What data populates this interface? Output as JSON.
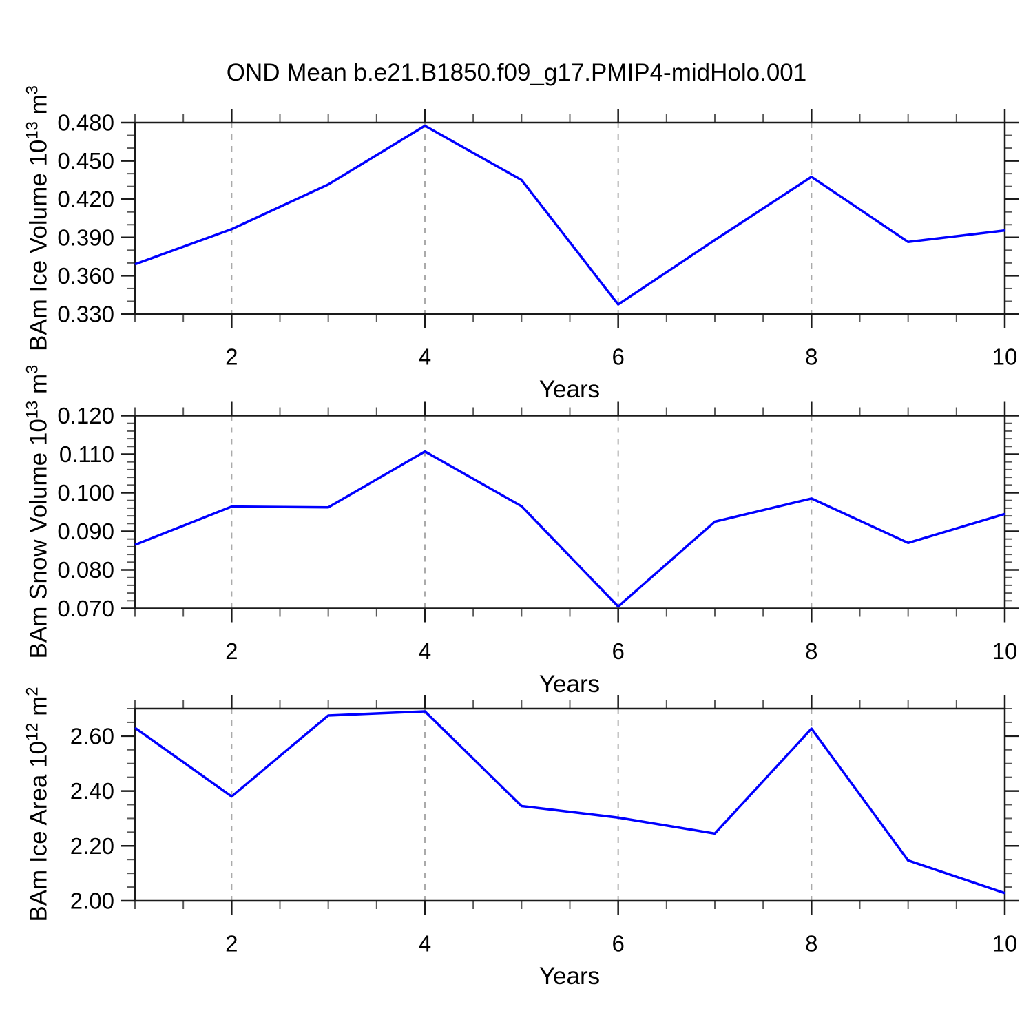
{
  "title": "OND Mean b.e21.B1850.f09_g17.PMIP4-midHolo.001",
  "colors": {
    "line": "#0000ff",
    "grid": "#aaaaaa",
    "axis": "#1a1a1a",
    "minor_tick": "#5a5a5a",
    "text": "#000000"
  },
  "chart_data": [
    {
      "type": "line",
      "name": "ice-volume",
      "ylabel_rich": [
        {
          "t": "BAm Ice Volume 10"
        },
        {
          "t": "13",
          "sup": true
        },
        {
          "t": " m"
        },
        {
          "t": "3",
          "sup": true
        }
      ],
      "xlabel": "Years",
      "x": [
        1,
        2,
        3,
        4,
        5,
        6,
        7,
        8,
        9,
        10
      ],
      "values": [
        0.369,
        0.3965,
        0.4315,
        0.4775,
        0.435,
        0.3375,
        0.388,
        0.4375,
        0.3865,
        0.3955
      ],
      "ylim": [
        0.33,
        0.48
      ],
      "yticks": [
        0.33,
        0.36,
        0.39,
        0.42,
        0.45,
        0.48
      ],
      "ytick_labels": [
        "0.330",
        "0.360",
        "0.390",
        "0.420",
        "0.450",
        "0.480"
      ],
      "yminor_step": 0.01,
      "xlim": [
        1,
        10
      ],
      "xticks": [
        2,
        4,
        6,
        8,
        10
      ],
      "xtick_labels": [
        "2",
        "4",
        "6",
        "8",
        "10"
      ],
      "xminor_step": 0.5,
      "grid_x": [
        2,
        4,
        6,
        8
      ],
      "legend": "none",
      "grid": "vertical-dashed"
    },
    {
      "type": "line",
      "name": "snow-volume",
      "ylabel_rich": [
        {
          "t": "BAm Snow Volume 10"
        },
        {
          "t": "13",
          "sup": true
        },
        {
          "t": " m"
        },
        {
          "t": "3",
          "sup": true
        }
      ],
      "xlabel": "Years",
      "x": [
        1,
        2,
        3,
        4,
        5,
        6,
        7,
        8,
        9,
        10
      ],
      "values": [
        0.0865,
        0.0964,
        0.0962,
        0.1107,
        0.0965,
        0.0705,
        0.0925,
        0.0985,
        0.087,
        0.0945
      ],
      "ylim": [
        0.07,
        0.12
      ],
      "yticks": [
        0.07,
        0.08,
        0.09,
        0.1,
        0.11,
        0.12
      ],
      "ytick_labels": [
        "0.070",
        "0.080",
        "0.090",
        "0.100",
        "0.110",
        "0.120"
      ],
      "yminor_step": 0.002,
      "xlim": [
        1,
        10
      ],
      "xticks": [
        2,
        4,
        6,
        8,
        10
      ],
      "xtick_labels": [
        "2",
        "4",
        "6",
        "8",
        "10"
      ],
      "xminor_step": 0.5,
      "grid_x": [
        2,
        4,
        6,
        8
      ],
      "legend": "none",
      "grid": "vertical-dashed"
    },
    {
      "type": "line",
      "name": "ice-area",
      "ylabel_rich": [
        {
          "t": "BAm Ice Area 10"
        },
        {
          "t": "12",
          "sup": true
        },
        {
          "t": " m"
        },
        {
          "t": "2",
          "sup": true
        }
      ],
      "xlabel": "Years",
      "x": [
        1,
        2,
        3,
        4,
        5,
        6,
        7,
        8,
        9,
        10
      ],
      "values": [
        2.63,
        2.38,
        2.675,
        2.69,
        2.345,
        2.303,
        2.245,
        2.627,
        2.147,
        2.028
      ],
      "ylim": [
        2.0,
        2.7
      ],
      "yticks": [
        2.0,
        2.2,
        2.4,
        2.6
      ],
      "ytick_labels": [
        "2.00",
        "2.20",
        "2.40",
        "2.60"
      ],
      "yminor_step": 0.05,
      "xlim": [
        1,
        10
      ],
      "xticks": [
        2,
        4,
        6,
        8,
        10
      ],
      "xtick_labels": [
        "2",
        "4",
        "6",
        "8",
        "10"
      ],
      "xminor_step": 0.5,
      "grid_x": [
        2,
        4,
        6,
        8
      ],
      "legend": "none",
      "grid": "vertical-dashed"
    }
  ]
}
